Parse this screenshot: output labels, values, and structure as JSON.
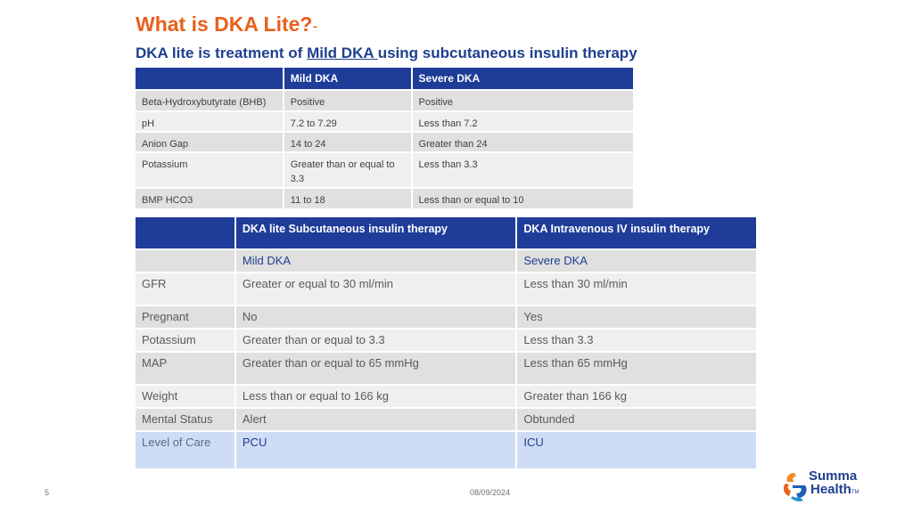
{
  "title": {
    "main": "What is DKA Lite?",
    "dash": "-"
  },
  "subtitle": {
    "before": "DKA lite is treatment of ",
    "underlined": "Mild DKA ",
    "after": "using subcutaneous insulin therapy"
  },
  "table1": {
    "headers": [
      "",
      "Mild DKA",
      "Severe DKA"
    ],
    "rows": [
      [
        "Beta-Hydroxybutyrate (BHB)",
        "Positive",
        "Positive"
      ],
      [
        "pH",
        "7.2 to 7.29",
        "Less than 7.2"
      ],
      [
        "Anion Gap",
        "14 to 24",
        "Greater than 24"
      ],
      [
        "Potassium",
        "Greater than or equal to 3.3",
        "Less than 3.3"
      ],
      [
        "BMP HCO3",
        "11 to 18",
        "Less than or equal to 10"
      ]
    ]
  },
  "table2": {
    "headers": [
      "",
      "DKA lite Subcutaneous insulin therapy",
      "DKA Intravenous IV insulin therapy"
    ],
    "rows": [
      [
        "",
        "Mild DKA",
        "Severe DKA"
      ],
      [
        "GFR",
        "Greater or equal to 30 ml/min",
        "Less than 30 ml/min"
      ],
      [
        "Pregnant",
        "No",
        "Yes"
      ],
      [
        "Potassium",
        "Greater than or equal to 3.3",
        "Less than 3.3"
      ],
      [
        "MAP",
        "Greater than or equal to 65 mmHg",
        "Less than 65 mmHg"
      ],
      [
        "Weight",
        "Less than or equal to 166 kg",
        "Greater than 166 kg"
      ],
      [
        "Mental Status",
        "Alert",
        "Obtunded"
      ],
      [
        "Level of Care",
        "PCU",
        "ICU"
      ]
    ]
  },
  "footer": {
    "page_number": "5",
    "date": "08/09/2024"
  },
  "logo": {
    "line1": "Summa",
    "line2": "Health",
    "mark": "TM"
  },
  "colors": {
    "title": "#e8601c",
    "navy": "#1f3c99",
    "blue_text": "#1f3f8f"
  }
}
